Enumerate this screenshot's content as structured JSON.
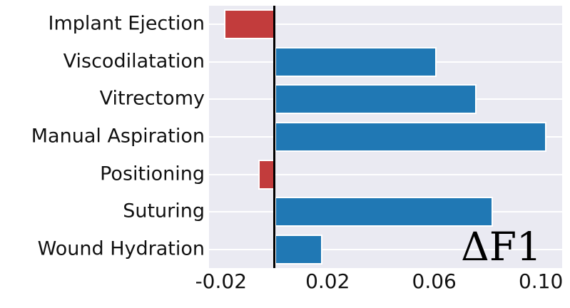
{
  "chart_data": {
    "type": "bar",
    "orientation": "horizontal",
    "title": "",
    "categories": [
      "Implant Ejection",
      "Viscodilatation",
      "Vitrectomy",
      "Manual Aspiration",
      "Positioning",
      "Suturing",
      "Wound Hydration"
    ],
    "values": [
      -0.019,
      0.061,
      0.076,
      0.102,
      -0.006,
      0.082,
      0.018
    ],
    "annotation": "ΔF1",
    "x_tick_values": [
      -0.02,
      0.02,
      0.06,
      0.1
    ],
    "x_tick_labels": [
      "-0.02",
      "0.02",
      "0.06",
      "0.10"
    ],
    "xlim": [
      -0.0245,
      0.108
    ],
    "grid": "horizontal-only",
    "legend": "none",
    "zero_line_value": 0,
    "colors": {
      "positive_bar": "#2078b4",
      "negative_bar": "#c23c3c",
      "bar_edge": "#ffffff",
      "plot_background": "#eaeaf2",
      "gridline": "#ffffff",
      "zero_line": "#000000",
      "text": "#111111"
    }
  }
}
